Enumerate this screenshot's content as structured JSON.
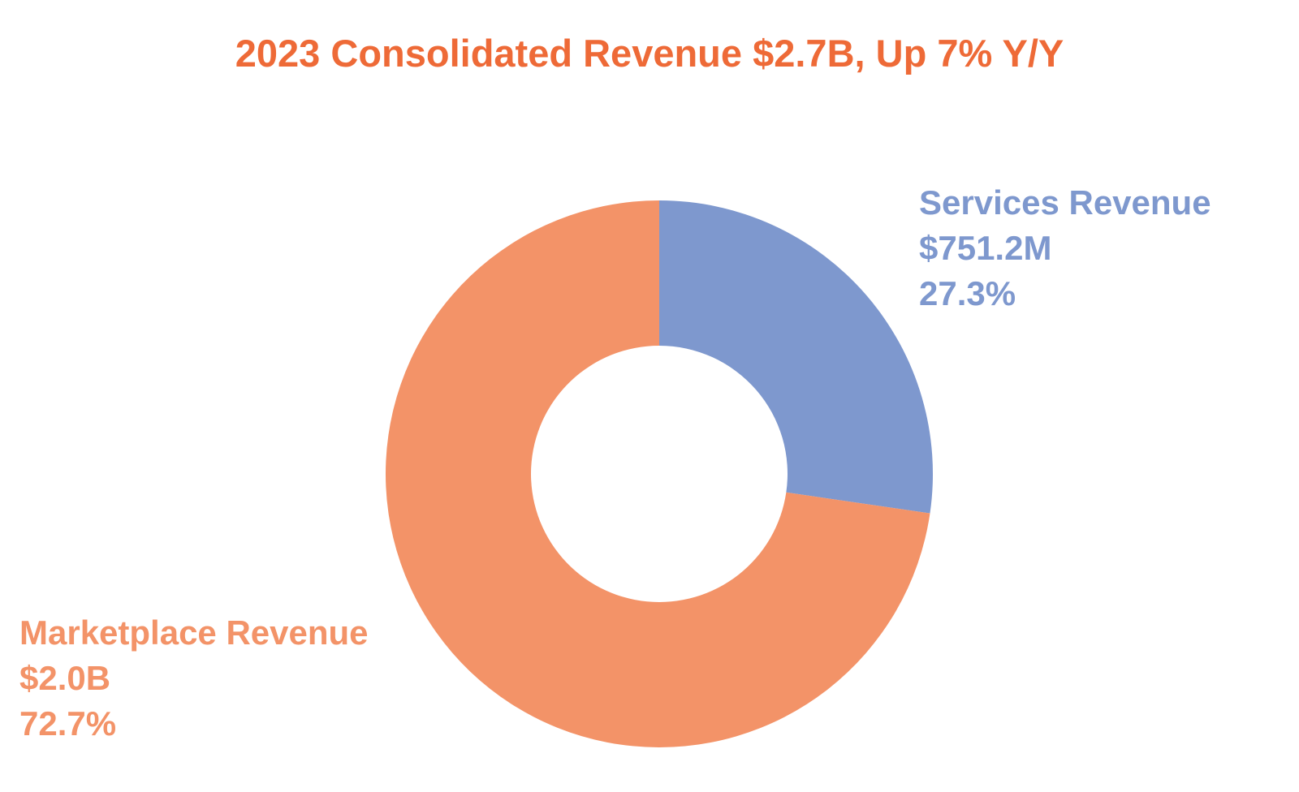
{
  "colors": {
    "title": "#EE6A37",
    "services": "#7E98CE",
    "marketplace": "#F39368"
  },
  "chart_data": {
    "type": "pie",
    "subtype": "donut",
    "title": "2023 Consolidated Revenue $2.7B, Up 7% Y/Y",
    "slices": [
      {
        "name": "Services Revenue",
        "value_label": "$751.2M",
        "percent_label": "27.3%",
        "percent": 27.3,
        "value_millions": 751.2,
        "color": "#7E98CE"
      },
      {
        "name": "Marketplace Revenue",
        "value_label": "$2.0B",
        "percent_label": "72.7%",
        "percent": 72.7,
        "value_millions": 2000,
        "color": "#F39368"
      }
    ],
    "start_angle": "top",
    "direction": "clockwise"
  }
}
